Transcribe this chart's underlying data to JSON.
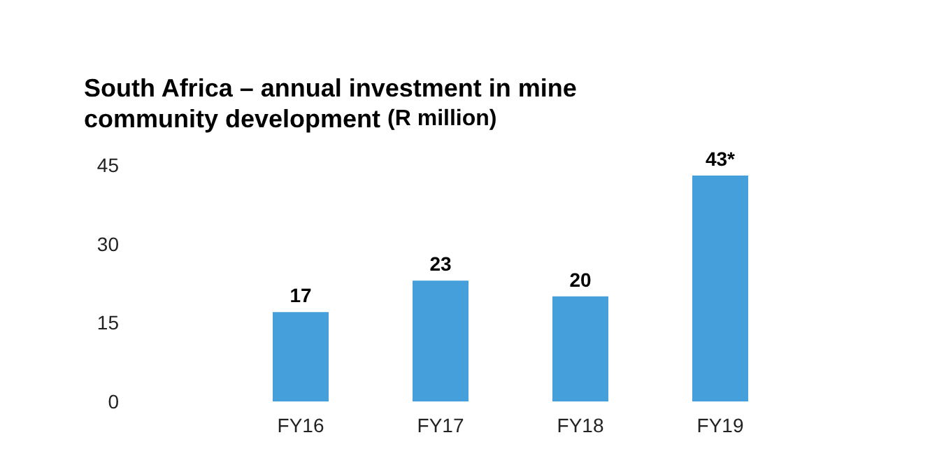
{
  "chart_data": {
    "type": "bar",
    "title": "South Africa – annual investment in mine community development",
    "subtitle": "(R million)",
    "categories": [
      "FY16",
      "FY17",
      "FY18",
      "FY19"
    ],
    "values": [
      17,
      23,
      20,
      43
    ],
    "value_labels": [
      "17",
      "23",
      "20",
      "43*"
    ],
    "color": "#459fdb",
    "ylim": [
      0,
      45
    ],
    "yticks": [
      0,
      15,
      30,
      45
    ],
    "grid": false
  }
}
